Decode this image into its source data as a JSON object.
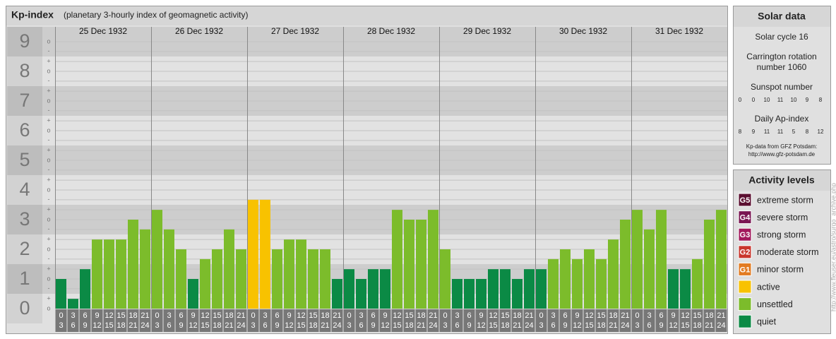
{
  "chart_data": {
    "type": "bar",
    "title": "Kp-index",
    "subtitle": "(planetary 3-hourly index of geomagnetic activity)",
    "days": [
      "25 Dec 1932",
      "26 Dec 1932",
      "27 Dec 1932",
      "28 Dec 1932",
      "29 Dec 1932",
      "30 Dec 1932",
      "31 Dec 1932"
    ],
    "hours": [
      [
        "0",
        "3"
      ],
      [
        "3",
        "6"
      ],
      [
        "6",
        "9"
      ],
      [
        "9",
        "12"
      ],
      [
        "12",
        "15"
      ],
      [
        "15",
        "18"
      ],
      [
        "18",
        "21"
      ],
      [
        "21",
        "24"
      ]
    ],
    "values": [
      1,
      0.33,
      1.33,
      2.33,
      2.33,
      2.33,
      3,
      2.67,
      3.33,
      2.67,
      2,
      1,
      1.67,
      2,
      2.67,
      2,
      3.67,
      3.67,
      2,
      2.33,
      2.33,
      2,
      2,
      1,
      1.33,
      1,
      1.33,
      1.33,
      3.33,
      3,
      3,
      3.33,
      2,
      1,
      1,
      1,
      1.33,
      1.33,
      1,
      1.33,
      1.33,
      1.67,
      2,
      1.67,
      2,
      1.67,
      2.33,
      3,
      3.33,
      2.67,
      3.33,
      1.33,
      1.33,
      1.67,
      3,
      3.33
    ],
    "colors": [
      "#0b8a45",
      "#0b8a45",
      "#0b8a45",
      "#7cbc2b",
      "#7cbc2b",
      "#7cbc2b",
      "#7cbc2b",
      "#7cbc2b",
      "#7cbc2b",
      "#7cbc2b",
      "#7cbc2b",
      "#0b8a45",
      "#7cbc2b",
      "#7cbc2b",
      "#7cbc2b",
      "#7cbc2b",
      "#f8c200",
      "#f8c200",
      "#7cbc2b",
      "#7cbc2b",
      "#7cbc2b",
      "#7cbc2b",
      "#7cbc2b",
      "#0b8a45",
      "#0b8a45",
      "#0b8a45",
      "#0b8a45",
      "#0b8a45",
      "#7cbc2b",
      "#7cbc2b",
      "#7cbc2b",
      "#7cbc2b",
      "#7cbc2b",
      "#0b8a45",
      "#0b8a45",
      "#0b8a45",
      "#0b8a45",
      "#0b8a45",
      "#0b8a45",
      "#0b8a45",
      "#0b8a45",
      "#7cbc2b",
      "#7cbc2b",
      "#7cbc2b",
      "#7cbc2b",
      "#7cbc2b",
      "#7cbc2b",
      "#7cbc2b",
      "#7cbc2b",
      "#7cbc2b",
      "#7cbc2b",
      "#0b8a45",
      "#0b8a45",
      "#7cbc2b",
      "#7cbc2b",
      "#7cbc2b"
    ],
    "ylim": [
      0,
      9.5
    ],
    "yticks": [
      0,
      1,
      2,
      3,
      4,
      5,
      6,
      7,
      8,
      9
    ],
    "minor_yticks": [
      {
        "value": 0,
        "label": "o"
      },
      {
        "value": 0.33,
        "label": "+"
      },
      {
        "value": 0.67,
        "label": "-"
      },
      {
        "value": 1,
        "label": "o"
      },
      {
        "value": 1.33,
        "label": "+"
      },
      {
        "value": 1.67,
        "label": "-"
      },
      {
        "value": 2,
        "label": "o"
      },
      {
        "value": 2.33,
        "label": "+"
      },
      {
        "value": 2.67,
        "label": "-"
      },
      {
        "value": 3,
        "label": "o"
      },
      {
        "value": 3.33,
        "label": "+"
      },
      {
        "value": 3.67,
        "label": "-"
      },
      {
        "value": 4,
        "label": "o"
      },
      {
        "value": 4.33,
        "label": "+"
      },
      {
        "value": 4.67,
        "label": "-"
      },
      {
        "value": 5,
        "label": "o"
      },
      {
        "value": 5.33,
        "label": "+"
      },
      {
        "value": 5.67,
        "label": "-"
      },
      {
        "value": 6,
        "label": "o"
      },
      {
        "value": 6.33,
        "label": "+"
      },
      {
        "value": 6.67,
        "label": "-"
      },
      {
        "value": 7,
        "label": "o"
      },
      {
        "value": 7.33,
        "label": "+"
      },
      {
        "value": 7.67,
        "label": "-"
      },
      {
        "value": 8,
        "label": "o"
      },
      {
        "value": 8.33,
        "label": "+"
      },
      {
        "value": 8.67,
        "label": "-"
      },
      {
        "value": 9,
        "label": "o"
      }
    ],
    "grid": true
  },
  "solar": {
    "title": "Solar data",
    "cycle": "Solar cycle 16",
    "carrington": [
      "Carrington rotation",
      "number 1060"
    ],
    "sunspot_label": "Sunspot number",
    "sunspot": [
      "0",
      "0",
      "10",
      "11",
      "10",
      "9",
      "8"
    ],
    "ap_label": "Daily Ap-index",
    "ap": [
      "8",
      "9",
      "11",
      "11",
      "5",
      "8",
      "12"
    ],
    "source": "Kp-data from GFZ Potsdam:",
    "url": "http://www.gfz-potsdam.de"
  },
  "activity": {
    "title": "Activity levels",
    "levels": [
      {
        "code": "G5",
        "name": "extreme storm",
        "color": "#5b0f30"
      },
      {
        "code": "G4",
        "name": "severe storm",
        "color": "#7a1552"
      },
      {
        "code": "G3",
        "name": "strong storm",
        "color": "#a2195c"
      },
      {
        "code": "G2",
        "name": "moderate storm",
        "color": "#c9362c"
      },
      {
        "code": "G1",
        "name": "minor storm",
        "color": "#e27b22"
      },
      {
        "name": "active",
        "color": "#f8c200"
      },
      {
        "name": "unsettled",
        "color": "#7cbc2b"
      },
      {
        "name": "quiet",
        "color": "#0b8a45"
      }
    ]
  },
  "watermark": "http://www.fleuser.eu/astro/surgo_archive.php"
}
